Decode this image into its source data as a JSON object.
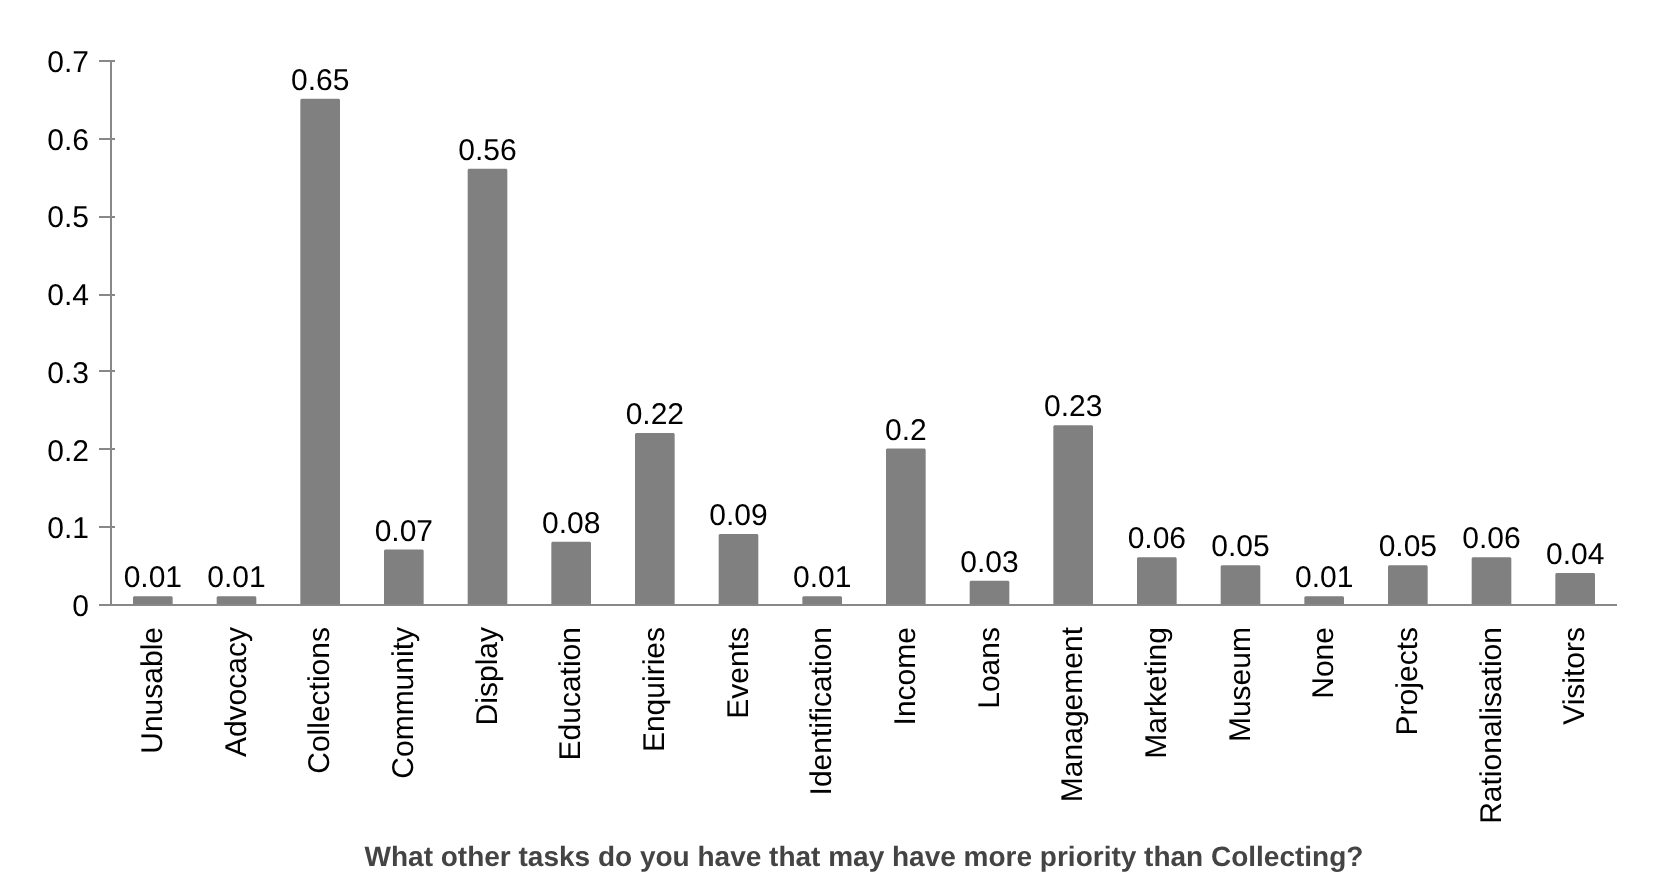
{
  "chart_data": {
    "type": "bar",
    "xlabel": "What other tasks do you have that may have more priority than Collecting?",
    "categories": [
      "Unusable",
      "Advocacy",
      "Collections",
      "Community",
      "Display",
      "Education",
      "Enquiries",
      "Events",
      "Identification",
      "Income",
      "Loans",
      "Management",
      "Marketing",
      "Museum",
      "None",
      "Projects",
      "Rationalisation",
      "Visitors"
    ],
    "values": [
      0.01,
      0.01,
      0.65,
      0.07,
      0.56,
      0.08,
      0.22,
      0.09,
      0.01,
      0.2,
      0.03,
      0.23,
      0.06,
      0.05,
      0.01,
      0.05,
      0.06,
      0.04
    ],
    "color": "#808080",
    "ylim": [
      0,
      0.7
    ],
    "yticks": [
      0,
      0.1,
      0.2,
      0.3,
      0.4,
      0.5,
      0.6,
      0.7
    ],
    "data_labels": true,
    "grid": false
  }
}
